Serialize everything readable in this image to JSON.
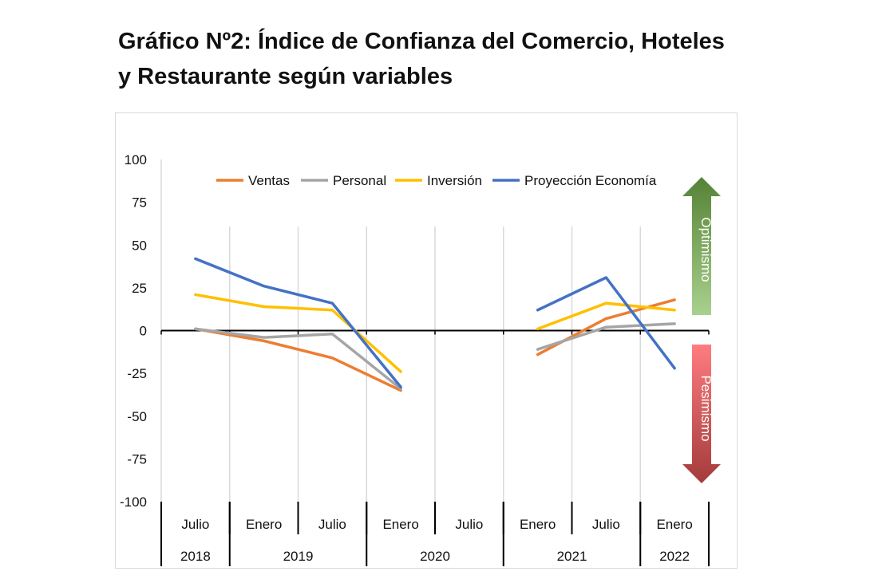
{
  "title": {
    "line1": "Gráfico Nº2: Índice de Confianza del Comercio, Hoteles",
    "line2": "y Restaurante según variables"
  },
  "chart_data": {
    "type": "line",
    "title": "Gráfico Nº2: Índice de Confianza del Comercio, Hoteles y Restaurante según variables",
    "ylim": [
      -100,
      100
    ],
    "yticks": [
      100,
      75,
      50,
      25,
      0,
      -25,
      -50,
      -75,
      -100
    ],
    "categories": [
      "Julio",
      "Enero",
      "Julio",
      "Enero",
      "Julio",
      "Enero",
      "Julio",
      "Enero"
    ],
    "years": [
      {
        "label": "2018",
        "span": [
          0,
          0
        ]
      },
      {
        "label": "2019",
        "span": [
          1,
          2
        ]
      },
      {
        "label": "2020",
        "span": [
          3,
          4
        ]
      },
      {
        "label": "2021",
        "span": [
          5,
          6
        ]
      },
      {
        "label": "2022",
        "span": [
          7,
          7
        ]
      }
    ],
    "series": [
      {
        "name": "Ventas",
        "color": "#ED7D31",
        "segments": [
          [
            [
              0,
              1
            ],
            [
              1,
              -6
            ],
            [
              2,
              -16
            ],
            [
              3,
              -35
            ]
          ],
          [
            [
              5,
              -14
            ],
            [
              6,
              7
            ],
            [
              7,
              18
            ]
          ]
        ]
      },
      {
        "name": "Personal",
        "color": "#A5A5A5",
        "segments": [
          [
            [
              0,
              1
            ],
            [
              1,
              -4
            ],
            [
              2,
              -2
            ],
            [
              3,
              -34
            ]
          ],
          [
            [
              5,
              -11
            ],
            [
              6,
              2
            ],
            [
              7,
              4
            ]
          ]
        ]
      },
      {
        "name": "Inversión",
        "color": "#FFC000",
        "segments": [
          [
            [
              0,
              21
            ],
            [
              1,
              14
            ],
            [
              2,
              12
            ],
            [
              3,
              -24
            ]
          ],
          [
            [
              5,
              1
            ],
            [
              6,
              16
            ],
            [
              7,
              12
            ]
          ]
        ]
      },
      {
        "name": "Proyección Economía",
        "color": "#4472C4",
        "segments": [
          [
            [
              0,
              42
            ],
            [
              1,
              26
            ],
            [
              2,
              16
            ],
            [
              3,
              -33
            ]
          ],
          [
            [
              5,
              12
            ],
            [
              6,
              31
            ],
            [
              7,
              -22
            ]
          ]
        ]
      }
    ],
    "legend_position": "top",
    "grid": "vertical",
    "annotations": {
      "optimism": {
        "label": "Optimismo",
        "color_top": "#548235",
        "color_bottom": "#A9D18E"
      },
      "pessimism": {
        "label": "Pesimismo",
        "color_top": "#FF7C80",
        "color_bottom": "#A33B3B"
      }
    }
  }
}
